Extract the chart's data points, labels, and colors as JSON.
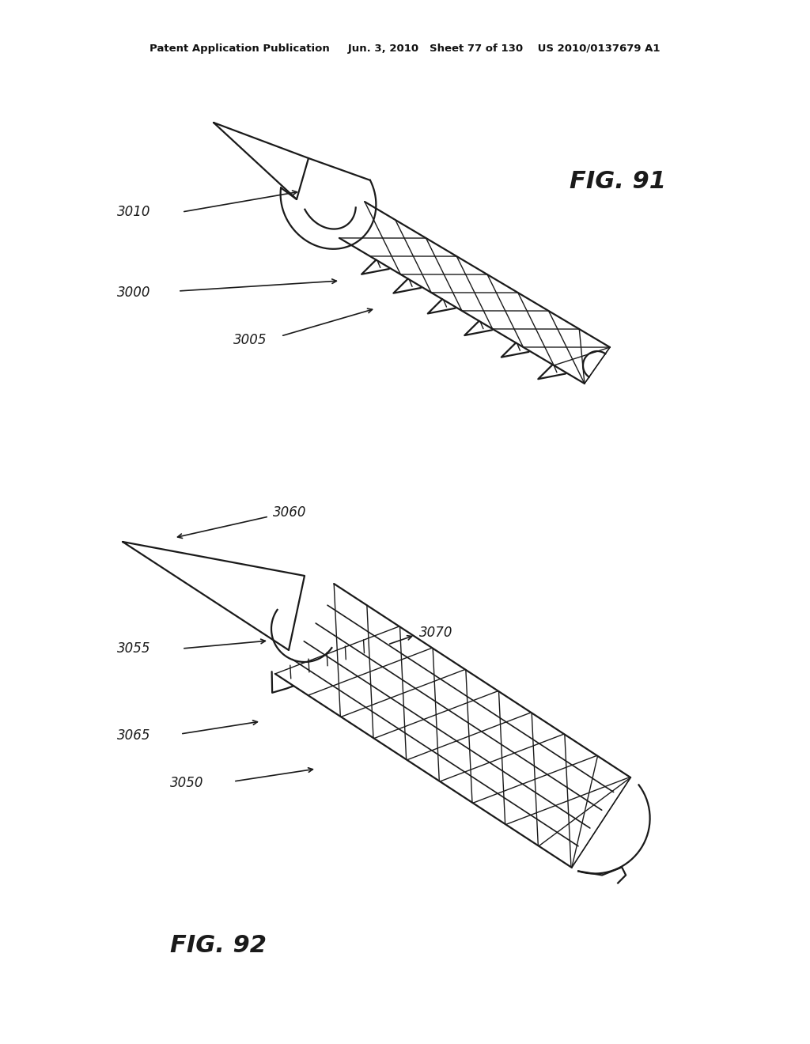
{
  "bg_color": "#ffffff",
  "line_color": "#1a1a1a",
  "header_text": "Patent Application Publication     Jun. 3, 2010   Sheet 77 of 130    US 2010/0137679 A1",
  "fig91_label": "FIG. 91",
  "fig92_label": "FIG. 92"
}
